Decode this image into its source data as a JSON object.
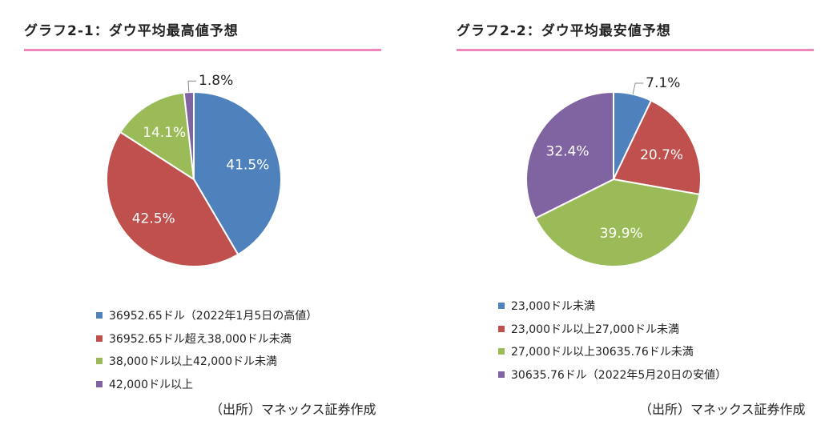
{
  "chart_data": [
    {
      "type": "pie",
      "title": "グラフ2-1：ダウ平均最高値予想",
      "categories": [
        "36952.65ドル（2022年1月5日の高値）",
        "36952.65ドル超え38,000ドル未満",
        "38,000ドル以上42,000ドル未満",
        "42,000ドル以上"
      ],
      "values": [
        41.5,
        42.5,
        14.1,
        1.8
      ],
      "labels": [
        "41.5%",
        "42.5%",
        "14.1%",
        "1.8%"
      ],
      "colors": [
        "#4f81bd",
        "#c0504d",
        "#9bbb59",
        "#8064a2"
      ],
      "legend_position": "bottom",
      "source": "（出所）マネックス証券作成"
    },
    {
      "type": "pie",
      "title": "グラフ2-2：ダウ平均最安値予想",
      "categories": [
        "23,000ドル未満",
        "23,000ドル以上27,000ドル未満",
        "27,000ドル以上30635.76ドル未満",
        "30635.76ドル（2022年5月20日の安値）"
      ],
      "values": [
        7.1,
        20.7,
        39.9,
        32.4
      ],
      "labels": [
        "7.1%",
        "20.7%",
        "39.9%",
        "32.4%"
      ],
      "colors": [
        "#4f81bd",
        "#c0504d",
        "#9bbb59",
        "#8064a2"
      ],
      "legend_position": "bottom",
      "source": "（出所）マネックス証券作成"
    }
  ]
}
